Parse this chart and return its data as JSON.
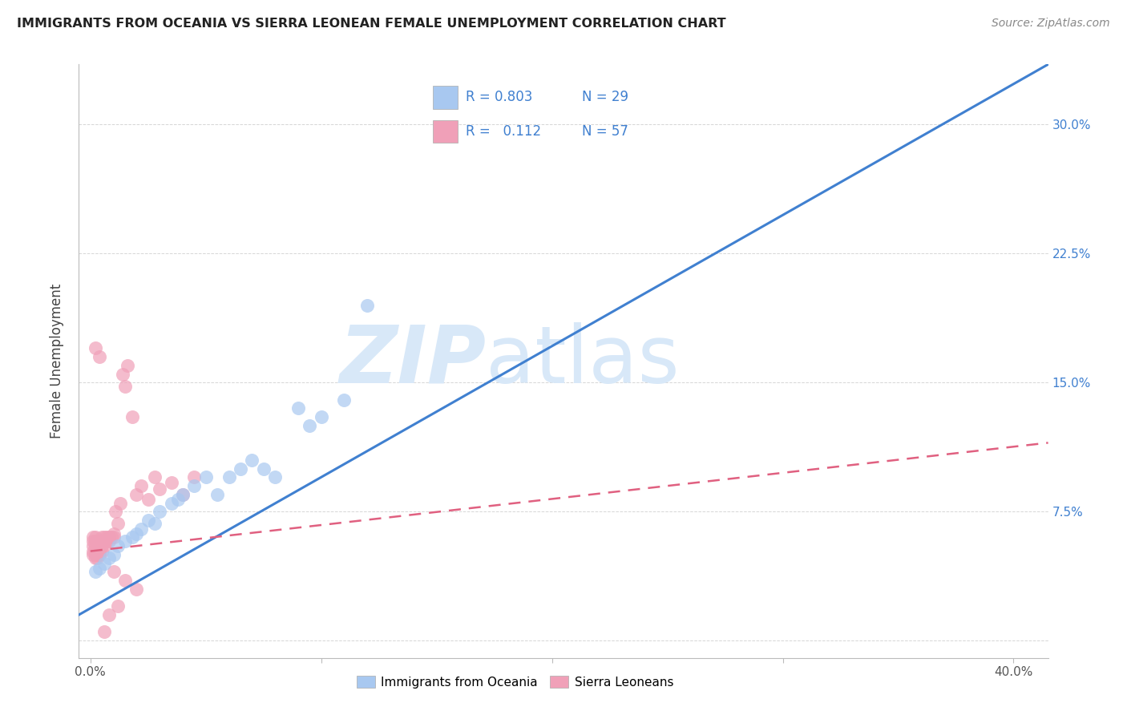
{
  "title": "IMMIGRANTS FROM OCEANIA VS SIERRA LEONEAN FEMALE UNEMPLOYMENT CORRELATION CHART",
  "source": "Source: ZipAtlas.com",
  "ylabel": "Female Unemployment",
  "legend_label1": "Immigrants from Oceania",
  "legend_label2": "Sierra Leoneans",
  "r1": 0.803,
  "n1": 29,
  "r2": 0.112,
  "n2": 57,
  "xlim": [
    -0.005,
    0.415
  ],
  "ylim": [
    -0.01,
    0.335
  ],
  "xticks": [
    0.0,
    0.1,
    0.2,
    0.3,
    0.4
  ],
  "xtick_labels_show": [
    "0.0%",
    "",
    "",
    "",
    "40.0%"
  ],
  "yticks": [
    0.0,
    0.075,
    0.15,
    0.225,
    0.3
  ],
  "ytick_labels_right": [
    "",
    "7.5%",
    "15.0%",
    "22.5%",
    "30.0%"
  ],
  "color_blue": "#a8c8f0",
  "color_pink": "#f0a0b8",
  "line_blue": "#4080d0",
  "line_pink": "#e06080",
  "watermark_zip": "ZIP",
  "watermark_atlas": "atlas",
  "watermark_color": "#d8e8f8",
  "blue_scatter_x": [
    0.002,
    0.004,
    0.006,
    0.008,
    0.01,
    0.012,
    0.015,
    0.018,
    0.02,
    0.022,
    0.025,
    0.028,
    0.03,
    0.035,
    0.038,
    0.04,
    0.045,
    0.05,
    0.055,
    0.06,
    0.065,
    0.07,
    0.075,
    0.08,
    0.09,
    0.095,
    0.1,
    0.11,
    0.12
  ],
  "blue_scatter_y": [
    0.04,
    0.042,
    0.045,
    0.048,
    0.05,
    0.055,
    0.058,
    0.06,
    0.062,
    0.065,
    0.07,
    0.068,
    0.075,
    0.08,
    0.082,
    0.085,
    0.09,
    0.095,
    0.085,
    0.095,
    0.1,
    0.105,
    0.1,
    0.095,
    0.135,
    0.125,
    0.13,
    0.14,
    0.195
  ],
  "pink_scatter_x": [
    0.001,
    0.001,
    0.001,
    0.001,
    0.001,
    0.002,
    0.002,
    0.002,
    0.002,
    0.002,
    0.002,
    0.003,
    0.003,
    0.003,
    0.003,
    0.003,
    0.004,
    0.004,
    0.004,
    0.004,
    0.005,
    0.005,
    0.005,
    0.005,
    0.006,
    0.006,
    0.006,
    0.007,
    0.007,
    0.008,
    0.008,
    0.009,
    0.01,
    0.01,
    0.011,
    0.012,
    0.013,
    0.014,
    0.015,
    0.016,
    0.018,
    0.02,
    0.022,
    0.025,
    0.028,
    0.03,
    0.035,
    0.04,
    0.045,
    0.012,
    0.008,
    0.006,
    0.01,
    0.015,
    0.02,
    0.004,
    0.002
  ],
  "pink_scatter_y": [
    0.05,
    0.052,
    0.055,
    0.058,
    0.06,
    0.048,
    0.05,
    0.052,
    0.055,
    0.058,
    0.06,
    0.048,
    0.05,
    0.052,
    0.055,
    0.058,
    0.05,
    0.052,
    0.055,
    0.058,
    0.052,
    0.055,
    0.058,
    0.06,
    0.055,
    0.058,
    0.06,
    0.058,
    0.06,
    0.058,
    0.06,
    0.06,
    0.06,
    0.062,
    0.075,
    0.068,
    0.08,
    0.155,
    0.148,
    0.16,
    0.13,
    0.085,
    0.09,
    0.082,
    0.095,
    0.088,
    0.092,
    0.085,
    0.095,
    0.02,
    0.015,
    0.005,
    0.04,
    0.035,
    0.03,
    0.165,
    0.17
  ],
  "blue_line_x": [
    -0.005,
    0.415
  ],
  "blue_line_y": [
    0.015,
    0.335
  ],
  "pink_line_x": [
    0.0,
    0.415
  ],
  "pink_line_y": [
    0.052,
    0.115
  ]
}
